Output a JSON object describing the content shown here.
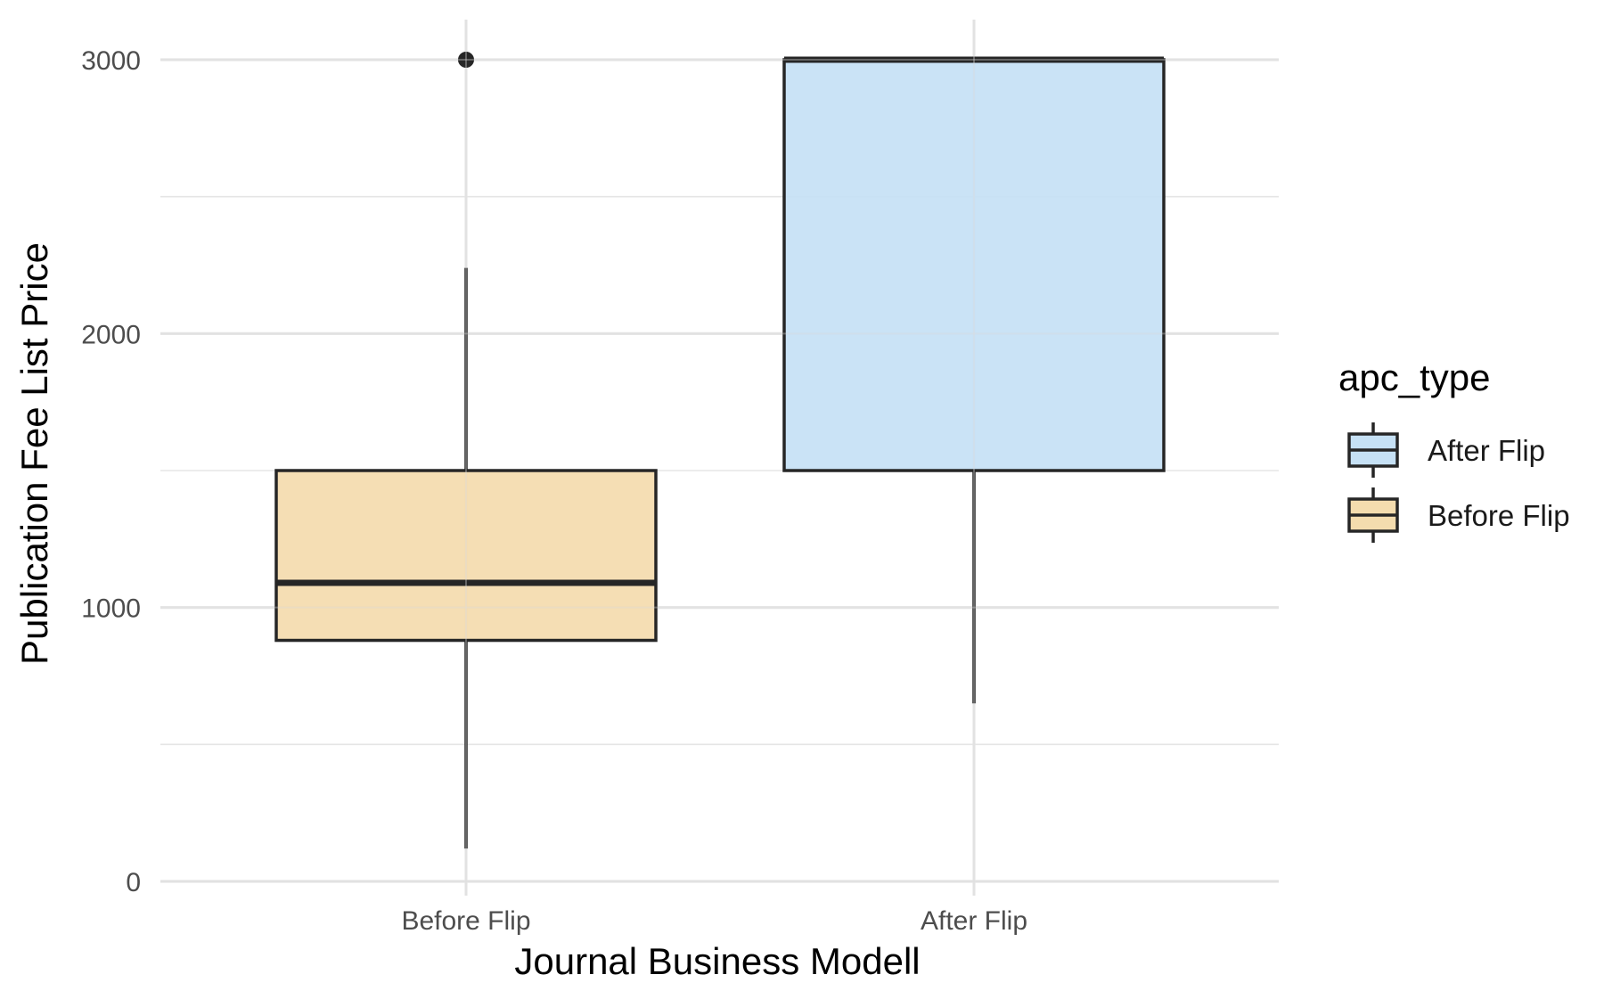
{
  "chart_data": {
    "type": "boxplot",
    "xlabel": "Journal Business Modell",
    "ylabel": "Publication Fee List Price",
    "ylim": [
      -60,
      3140
    ],
    "yticks": [
      0,
      1000,
      2000,
      3000
    ],
    "grid": true,
    "categories": [
      "Before Flip",
      "After Flip"
    ],
    "boxes": [
      {
        "category": "Before Flip",
        "series": "Before Flip",
        "whisker_low": 120,
        "q1": 880,
        "median": 1090,
        "q3": 1500,
        "whisker_high": 2240,
        "outliers": [
          3000
        ]
      },
      {
        "category": "After Flip",
        "series": "After Flip",
        "whisker_low": 650,
        "q1": 1500,
        "median": 3000,
        "q3": 3000,
        "whisker_high": 3000,
        "outliers": []
      }
    ],
    "legend": {
      "title": "apc_type",
      "position": "right",
      "items": [
        {
          "label": "After Flip",
          "color": "#c6e1f5"
        },
        {
          "label": "Before Flip",
          "color": "#f4dcae"
        }
      ]
    },
    "colors": {
      "Before Flip": "#f4dcae",
      "After Flip": "#c6e1f5",
      "stroke": "#262626",
      "grid": "#e5e5e5"
    }
  }
}
